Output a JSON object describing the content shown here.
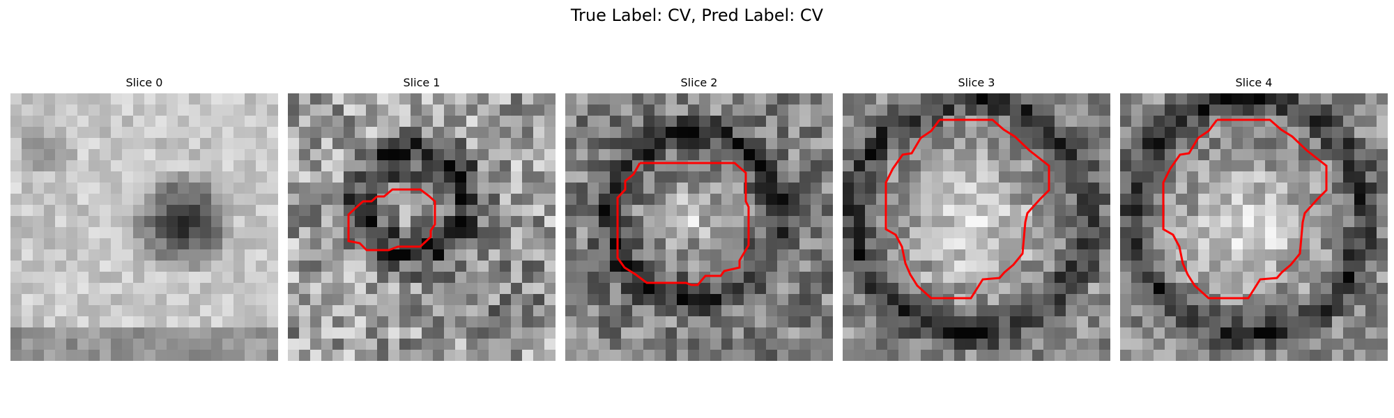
{
  "figure": {
    "title": "True Label: CV, Pred Label: CV"
  },
  "panels": [
    {
      "title": "Slice 0",
      "has_contour": false
    },
    {
      "title": "Slice 1",
      "has_contour": true
    },
    {
      "title": "Slice 2",
      "has_contour": true
    },
    {
      "title": "Slice 3",
      "has_contour": true
    },
    {
      "title": "Slice 4",
      "has_contour": true
    }
  ],
  "colors": {
    "contour": "#ff0000",
    "background": "#ffffff"
  },
  "colormap": "gray"
}
